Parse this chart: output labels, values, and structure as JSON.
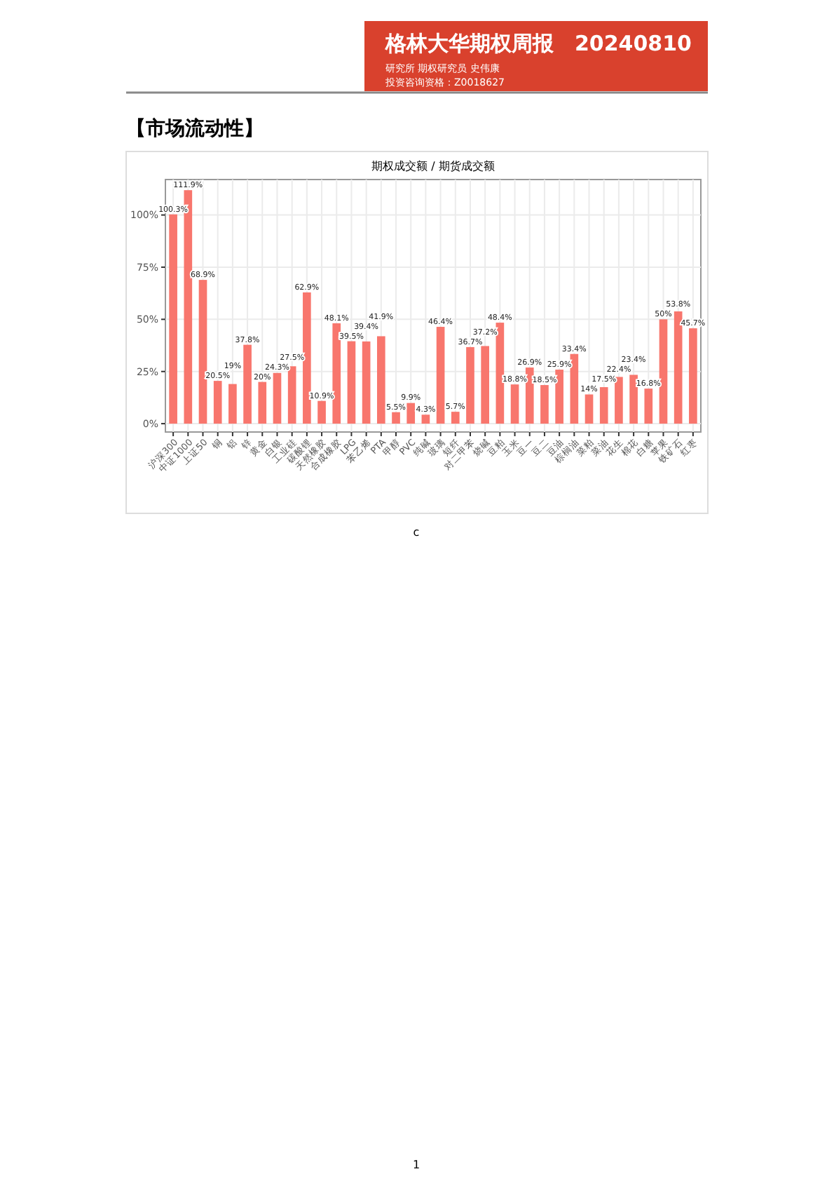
{
  "chart_data": {
    "type": "bar",
    "title": "期权成交额 / 期货成交额",
    "categories": [
      "沪深300",
      "中证1000",
      "上证50",
      "铜",
      "铝",
      "锌",
      "黄金",
      "白银",
      "工业硅",
      "碳酸锂",
      "天然橡胶",
      "合成橡胶",
      "LPG",
      "苯乙烯",
      "PTA",
      "甲醇",
      "PVC",
      "纯碱",
      "玻璃",
      "短纤",
      "对二甲苯",
      "烧碱",
      "豆粕",
      "玉米",
      "豆一",
      "豆二",
      "豆油",
      "棕榈油",
      "菜粕",
      "菜油",
      "花生",
      "棉花",
      "白糖",
      "苹果",
      "铁矿石",
      "红枣"
    ],
    "values": [
      100.3,
      111.9,
      68.9,
      20.5,
      19,
      37.8,
      20,
      24.3,
      27.5,
      62.9,
      10.9,
      48.1,
      39.5,
      39.4,
      41.9,
      5.5,
      9.9,
      4.3,
      46.4,
      5.7,
      36.7,
      37.2,
      48.4,
      18.8,
      26.9,
      18.5,
      25.9,
      33.4,
      14,
      17.5,
      22.4,
      23.4,
      16.8,
      50,
      53.8,
      45.7
    ],
    "value_labels": [
      "100.3%",
      "111.9%",
      "68.9%",
      "20.5%",
      "19%",
      "37.8%",
      "20%",
      "24.3%",
      "27.5%",
      "62.9%",
      "10.9%",
      "48.1%",
      "39.5%",
      "39.4%",
      "41.9%",
      "5.5%",
      "9.9%",
      "4.3%",
      "46.4%",
      "5.7%",
      "36.7%",
      "37.2%",
      "48.4%",
      "18.8%",
      "26.9%",
      "18.5%",
      "25.9%",
      "33.4%",
      "14%",
      "17.5%",
      "22.4%",
      "23.4%",
      "16.8%",
      "50%",
      "53.8%",
      "45.7%"
    ],
    "color": "#f8766d",
    "ylim": [
      -4,
      117
    ],
    "yticks": [
      {
        "value": 0,
        "label": "0%"
      },
      {
        "value": 25,
        "label": "25%"
      },
      {
        "value": 50,
        "label": "50%"
      },
      {
        "value": 75,
        "label": "75%"
      },
      {
        "value": 100,
        "label": "100%"
      }
    ],
    "grid": true,
    "annotations": [
      "格林大华期权周报",
      "20240810",
      "研究所 期权研究员 史伟康",
      "投资咨询资格：Z0018627",
      "【市场流动性】",
      "c",
      "1"
    ]
  }
}
